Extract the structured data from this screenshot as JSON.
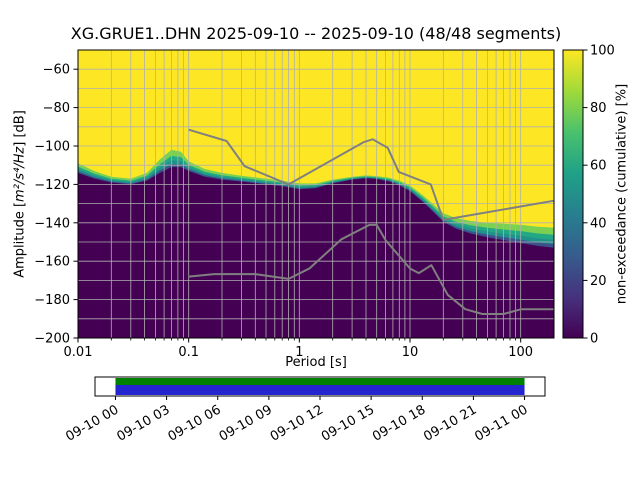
{
  "station": "XG.GRUE1..DHN",
  "date_range": "2025-09-10 -- 2025-09-10",
  "segments": "48/48",
  "chart_data": {
    "type": "heatmap",
    "title": "XG.GRUE1..DHN   2025-09-10 -- 2025-09-10  (48/48 segments)",
    "xlabel": "Period [s]",
    "ylabel": "Amplitude [m²/s⁴/Hz] [dB]",
    "ylabel_parts": {
      "prefix": "Amplitude [",
      "math": "m²/s⁴/Hz",
      "suffix": "] [dB]"
    },
    "xscale": "log",
    "xlim": [
      0.01,
      200
    ],
    "ylim": [
      -200,
      -50
    ],
    "xticks": [
      0.01,
      0.1,
      1,
      10,
      100
    ],
    "xtick_labels": [
      "0.01",
      "0.1",
      "1",
      "10",
      "100"
    ],
    "yticks": [
      -200,
      -180,
      -160,
      -140,
      -120,
      -100,
      -80,
      -60
    ],
    "ytick_labels": [
      "−200",
      "−180",
      "−160",
      "−140",
      "−120",
      "−100",
      "−80",
      "−60"
    ],
    "grid": true,
    "colormap": "viridis",
    "colors": {
      "background": "#fde725",
      "base": "#440154",
      "band": [
        "#7ad151",
        "#22a884",
        "#21918c",
        "#3b528b"
      ],
      "grid": "#b0b0b0",
      "frame": "#000000"
    },
    "band_fractions": [
      1.0,
      0.65,
      0.4,
      0.18
    ],
    "boundary": {
      "comment": "top of low-probability (dark) region in dB vs period, with transition band width in dB",
      "periods": [
        0.01,
        0.014,
        0.02,
        0.03,
        0.042,
        0.055,
        0.07,
        0.085,
        0.1,
        0.14,
        0.2,
        0.3,
        0.5,
        0.7,
        1.0,
        1.4,
        2.0,
        3.0,
        4.0,
        5.0,
        6.5,
        8.0,
        10,
        13,
        16,
        20,
        26,
        35,
        50,
        70,
        100,
        140,
        200
      ],
      "purple_top_db": [
        -114,
        -117,
        -119,
        -120,
        -118,
        -114,
        -111,
        -111,
        -113,
        -116,
        -117.5,
        -118.5,
        -120,
        -121,
        -122.5,
        -122,
        -119.5,
        -117.5,
        -116.8,
        -117.2,
        -118.5,
        -120.5,
        -123.5,
        -129,
        -134,
        -139.5,
        -143,
        -145.5,
        -147.5,
        -149,
        -150.5,
        -152,
        -153
      ],
      "band_db": [
        5,
        4,
        3,
        3,
        4,
        7,
        9,
        8,
        5,
        4,
        3.5,
        3,
        3,
        3,
        3,
        2.5,
        2,
        1.5,
        1.5,
        1.5,
        2,
        2.5,
        3,
        3.5,
        4,
        4.5,
        5.5,
        6.5,
        7.5,
        8.5,
        9.5,
        10,
        10.5
      ]
    },
    "noise_models": {
      "color": "#808080",
      "nhnm": [
        [
          0.1,
          -91.5
        ],
        [
          0.22,
          -97.4
        ],
        [
          0.32,
          -110.5
        ],
        [
          0.8,
          -120.0
        ],
        [
          3.8,
          -98.0
        ],
        [
          4.6,
          -96.5
        ],
        [
          6.3,
          -101.0
        ],
        [
          7.9,
          -113.5
        ],
        [
          15.4,
          -120.0
        ],
        [
          20.0,
          -138.5
        ],
        [
          200.0,
          -128.5
        ]
      ],
      "nlnm": [
        [
          0.1,
          -168.0
        ],
        [
          0.17,
          -166.7
        ],
        [
          0.4,
          -166.7
        ],
        [
          0.8,
          -169.2
        ],
        [
          1.24,
          -163.7
        ],
        [
          2.4,
          -148.6
        ],
        [
          4.3,
          -141.1
        ],
        [
          5.0,
          -141.1
        ],
        [
          6.0,
          -149.0
        ],
        [
          10.0,
          -163.8
        ],
        [
          12.0,
          -166.2
        ],
        [
          15.6,
          -162.1
        ],
        [
          21.9,
          -177.5
        ],
        [
          31.6,
          -185.0
        ],
        [
          45.0,
          -187.5
        ],
        [
          70.0,
          -187.5
        ],
        [
          101.0,
          -185.0
        ],
        [
          200.0,
          -185.0
        ]
      ]
    },
    "colorbar": {
      "label": "non-exceedance (cumulative) [%]",
      "ticks": [
        0,
        20,
        40,
        60,
        80,
        100
      ],
      "range": [
        0,
        100
      ],
      "stops": [
        "#440154",
        "#46327e",
        "#365c8d",
        "#277f8e",
        "#1fa187",
        "#4ac16d",
        "#a0da39",
        "#fde725"
      ]
    },
    "timeline": {
      "labels": [
        "09-10 00",
        "09-10 03",
        "09-10 06",
        "09-10 09",
        "09-10 12",
        "09-10 15",
        "09-10 18",
        "09-10 21",
        "09-11 00"
      ],
      "colors": {
        "green": "#008000",
        "blue": "#2424d0",
        "background": "#ffffff",
        "border": "#000000"
      }
    }
  }
}
